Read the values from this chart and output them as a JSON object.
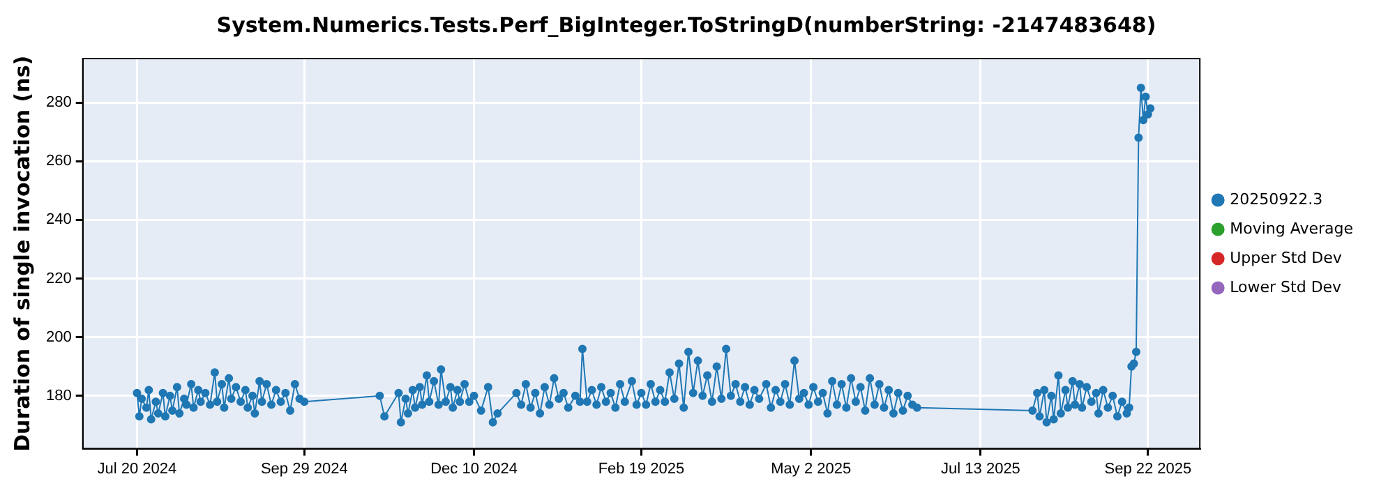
{
  "chart_data": {
    "type": "line",
    "title": "System.Numerics.Tests.Perf_BigInteger.ToStringD(numberString: -2147483648)",
    "ylabel": "Duration of single invocation (ns)",
    "xlim": [
      "2024-06-27",
      "2025-10-14"
    ],
    "xticks": [
      {
        "value": "2024-07-20",
        "label": "Jul 20 2024"
      },
      {
        "value": "2024-09-29",
        "label": "Sep 29 2024"
      },
      {
        "value": "2024-12-10",
        "label": "Dec 10 2024"
      },
      {
        "value": "2025-02-19",
        "label": "Feb 19 2025"
      },
      {
        "value": "2025-05-02",
        "label": "May 2 2025"
      },
      {
        "value": "2025-07-13",
        "label": "Jul 13 2025"
      },
      {
        "value": "2025-09-22",
        "label": "Sep 22 2025"
      }
    ],
    "ylim": [
      162,
      295
    ],
    "yticks": [
      180,
      200,
      220,
      240,
      260,
      280
    ],
    "grid": true,
    "legend": "right",
    "marker": "circle",
    "line_style": "solid",
    "series": [
      {
        "name": "20250922.3",
        "color": "#1f77b4",
        "x": [
          "2024-07-20",
          "2024-07-21",
          "2024-07-22",
          "2024-07-24",
          "2024-07-25",
          "2024-07-26",
          "2024-07-28",
          "2024-07-29",
          "2024-07-31",
          "2024-08-01",
          "2024-08-03",
          "2024-08-04",
          "2024-08-06",
          "2024-08-07",
          "2024-08-09",
          "2024-08-10",
          "2024-08-12",
          "2024-08-13",
          "2024-08-15",
          "2024-08-16",
          "2024-08-18",
          "2024-08-20",
          "2024-08-22",
          "2024-08-23",
          "2024-08-25",
          "2024-08-26",
          "2024-08-28",
          "2024-08-29",
          "2024-08-31",
          "2024-09-02",
          "2024-09-04",
          "2024-09-05",
          "2024-09-07",
          "2024-09-08",
          "2024-09-10",
          "2024-09-11",
          "2024-09-13",
          "2024-09-15",
          "2024-09-17",
          "2024-09-19",
          "2024-09-21",
          "2024-09-23",
          "2024-09-25",
          "2024-09-27",
          "2024-09-29",
          "2024-10-31",
          "2024-11-02",
          "2024-11-08",
          "2024-11-09",
          "2024-11-11",
          "2024-11-12",
          "2024-11-14",
          "2024-11-15",
          "2024-11-17",
          "2024-11-18",
          "2024-11-20",
          "2024-11-21",
          "2024-11-23",
          "2024-11-25",
          "2024-11-26",
          "2024-11-28",
          "2024-11-30",
          "2024-12-01",
          "2024-12-03",
          "2024-12-04",
          "2024-12-06",
          "2024-12-08",
          "2024-12-10",
          "2024-12-13",
          "2024-12-16",
          "2024-12-18",
          "2024-12-20",
          "2024-12-28",
          "2024-12-30",
          "2025-01-01",
          "2025-01-03",
          "2025-01-05",
          "2025-01-07",
          "2025-01-09",
          "2025-01-11",
          "2025-01-13",
          "2025-01-15",
          "2025-01-17",
          "2025-01-19",
          "2025-01-22",
          "2025-01-24",
          "2025-01-25",
          "2025-01-27",
          "2025-01-29",
          "2025-01-31",
          "2025-02-02",
          "2025-02-04",
          "2025-02-06",
          "2025-02-08",
          "2025-02-10",
          "2025-02-12",
          "2025-02-15",
          "2025-02-17",
          "2025-02-19",
          "2025-02-21",
          "2025-02-23",
          "2025-02-25",
          "2025-02-27",
          "2025-03-01",
          "2025-03-03",
          "2025-03-05",
          "2025-03-07",
          "2025-03-09",
          "2025-03-11",
          "2025-03-13",
          "2025-03-15",
          "2025-03-17",
          "2025-03-19",
          "2025-03-21",
          "2025-03-23",
          "2025-03-25",
          "2025-03-27",
          "2025-03-29",
          "2025-03-31",
          "2025-04-02",
          "2025-04-04",
          "2025-04-06",
          "2025-04-08",
          "2025-04-10",
          "2025-04-13",
          "2025-04-15",
          "2025-04-17",
          "2025-04-19",
          "2025-04-21",
          "2025-04-23",
          "2025-04-25",
          "2025-04-27",
          "2025-04-29",
          "2025-05-01",
          "2025-05-03",
          "2025-05-05",
          "2025-05-07",
          "2025-05-09",
          "2025-05-11",
          "2025-05-13",
          "2025-05-15",
          "2025-05-17",
          "2025-05-19",
          "2025-05-21",
          "2025-05-23",
          "2025-05-25",
          "2025-05-27",
          "2025-05-29",
          "2025-05-31",
          "2025-06-02",
          "2025-06-04",
          "2025-06-06",
          "2025-06-08",
          "2025-06-10",
          "2025-06-12",
          "2025-06-14",
          "2025-06-16",
          "2025-08-04",
          "2025-08-06",
          "2025-08-07",
          "2025-08-09",
          "2025-08-10",
          "2025-08-12",
          "2025-08-13",
          "2025-08-15",
          "2025-08-16",
          "2025-08-18",
          "2025-08-19",
          "2025-08-21",
          "2025-08-22",
          "2025-08-24",
          "2025-08-25",
          "2025-08-27",
          "2025-08-29",
          "2025-08-31",
          "2025-09-01",
          "2025-09-03",
          "2025-09-05",
          "2025-09-07",
          "2025-09-09",
          "2025-09-11",
          "2025-09-13",
          "2025-09-14",
          "2025-09-15",
          "2025-09-16",
          "2025-09-17",
          "2025-09-18",
          "2025-09-19",
          "2025-09-20",
          "2025-09-21",
          "2025-09-22",
          "2025-09-23"
        ],
        "values": [
          181,
          173,
          179,
          176,
          182,
          172,
          178,
          174,
          181,
          173,
          180,
          175,
          183,
          174,
          179,
          177,
          184,
          176,
          182,
          178,
          181,
          177,
          188,
          178,
          184,
          176,
          186,
          179,
          183,
          178,
          182,
          176,
          180,
          174,
          185,
          178,
          184,
          177,
          182,
          178,
          181,
          175,
          184,
          179,
          178,
          180,
          173,
          181,
          171,
          179,
          174,
          182,
          176,
          183,
          177,
          187,
          178,
          185,
          177,
          189,
          178,
          183,
          176,
          182,
          178,
          184,
          178,
          180,
          175,
          183,
          171,
          174,
          181,
          177,
          184,
          176,
          181,
          174,
          183,
          177,
          186,
          179,
          181,
          176,
          180,
          178,
          196,
          178,
          182,
          177,
          183,
          178,
          181,
          176,
          184,
          178,
          185,
          177,
          181,
          177,
          184,
          178,
          182,
          178,
          188,
          179,
          191,
          176,
          195,
          181,
          192,
          180,
          187,
          178,
          190,
          179,
          196,
          180,
          184,
          178,
          183,
          177,
          182,
          179,
          184,
          176,
          182,
          178,
          184,
          177,
          192,
          179,
          181,
          177,
          183,
          178,
          181,
          174,
          185,
          177,
          184,
          176,
          186,
          178,
          183,
          175,
          186,
          177,
          184,
          176,
          182,
          174,
          181,
          175,
          180,
          177,
          176,
          175,
          181,
          173,
          182,
          171,
          180,
          172,
          187,
          174,
          182,
          176,
          185,
          177,
          184,
          176,
          183,
          178,
          181,
          174,
          182,
          176,
          180,
          173,
          178,
          174,
          176,
          190,
          191,
          195,
          268,
          285,
          274,
          282,
          276,
          278
        ]
      },
      {
        "name": "Moving Average",
        "color": "#2ca02c"
      },
      {
        "name": "Upper Std Dev",
        "color": "#d62728"
      },
      {
        "name": "Lower Std Dev",
        "color": "#9467bd"
      }
    ]
  }
}
